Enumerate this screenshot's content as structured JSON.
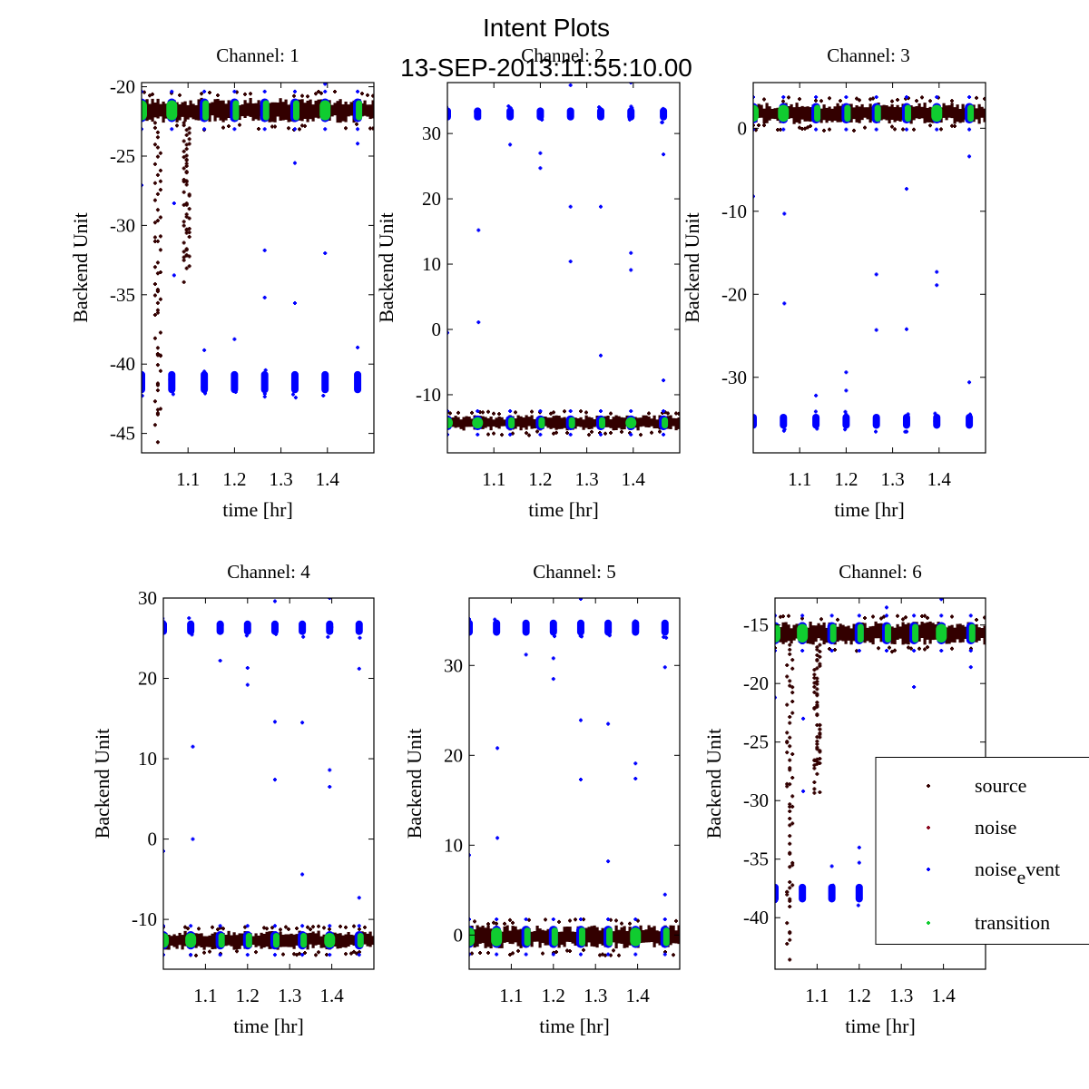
{
  "figure": {
    "title_line1": "Intent Plots",
    "title_line2": "13-SEP-2013:11:55:10.00"
  },
  "chart_data": {
    "type": "scatter",
    "title": "Intent Plots",
    "subtitle": "13-SEP-2013:11:55:10.00",
    "colors": {
      "source": "#330000",
      "noise": "#8b0a20",
      "noise_event": "#0000ff",
      "transition": "#10cc30"
    },
    "legend": {
      "placement": "lower-right of Channel: 6",
      "entries": [
        {
          "key": "source",
          "label": "source"
        },
        {
          "key": "noise",
          "label": "noise"
        },
        {
          "key": "noise_event",
          "label_main": "noise",
          "label_sub": "e",
          "label_rest": "vent"
        },
        {
          "key": "transition",
          "label": "transition"
        }
      ]
    },
    "cluster_times": [
      1.0,
      1.065,
      1.135,
      1.2,
      1.265,
      1.33,
      1.395,
      1.465
    ],
    "wide_transition_times": [
      1.0,
      1.065,
      1.395
    ],
    "panels": [
      {
        "title": "Channel: 1",
        "xlabel": "time [hr]",
        "ylabel": "Backend Unit",
        "xlim": [
          1.0,
          1.5
        ],
        "ylim": [
          -46.4,
          -19.7
        ],
        "xticks": [
          1.1,
          1.2,
          1.3,
          1.4
        ],
        "xtick_labels": [
          "1.1",
          "1.2",
          "1.3",
          "1.4"
        ],
        "yticks": [
          -20,
          -25,
          -30,
          -35,
          -40,
          -45
        ],
        "ytick_labels": [
          "-20",
          "-25",
          "-30",
          "-35",
          "-40",
          "-45"
        ],
        "source_band": {
          "center": -21.7,
          "half_width": 0.9
        },
        "noise_event_level": -41.3,
        "noise_event_spread": 0.8,
        "drops": [
          {
            "x": 1.035,
            "to": -46.4
          },
          {
            "x": 1.097,
            "to": -34.3
          }
        ],
        "outliers": [
          [
            1.0,
            -27.1
          ],
          [
            1.07,
            -28.4
          ],
          [
            1.07,
            -33.6
          ],
          [
            1.265,
            -31.8
          ],
          [
            1.265,
            -35.2
          ],
          [
            1.33,
            -25.5
          ],
          [
            1.33,
            -35.6
          ],
          [
            1.395,
            -32.0
          ],
          [
            1.465,
            -24.1
          ],
          [
            1.465,
            -38.8
          ],
          [
            1.2,
            -38.2
          ],
          [
            1.135,
            -39.0
          ],
          [
            1.395,
            -19.8
          ]
        ]
      },
      {
        "title": "Channel: 2",
        "xlabel": "time [hr]",
        "ylabel": "Backend Unit",
        "xlim": [
          1.0,
          1.5
        ],
        "ylim": [
          -18.9,
          37.8
        ],
        "xticks": [
          1.1,
          1.2,
          1.3,
          1.4
        ],
        "xtick_labels": [
          "1.1",
          "1.2",
          "1.3",
          "1.4"
        ],
        "yticks": [
          30,
          20,
          10,
          0,
          -10
        ],
        "ytick_labels": [
          "30",
          "20",
          "10",
          "0",
          "-10"
        ],
        "source_band": {
          "center": -14.3,
          "half_width": 1.2
        },
        "noise_event_level": 33.0,
        "noise_event_spread": 1.0,
        "drops": [],
        "outliers": [
          [
            1.0,
            -0.5
          ],
          [
            1.067,
            1.1
          ],
          [
            1.067,
            15.2
          ],
          [
            1.135,
            28.3
          ],
          [
            1.2,
            27.0
          ],
          [
            1.2,
            24.7
          ],
          [
            1.265,
            18.8
          ],
          [
            1.265,
            10.4
          ],
          [
            1.33,
            18.8
          ],
          [
            1.33,
            -4.0
          ],
          [
            1.395,
            11.7
          ],
          [
            1.395,
            9.1
          ],
          [
            1.465,
            26.8
          ],
          [
            1.465,
            -7.8
          ],
          [
            1.395,
            37.8
          ],
          [
            1.265,
            37.4
          ]
        ]
      },
      {
        "title": "Channel: 3",
        "xlabel": "time [hr]",
        "ylabel": "Backend Unit",
        "xlim": [
          1.0,
          1.5
        ],
        "ylim": [
          -39.1,
          5.5
        ],
        "xticks": [
          1.1,
          1.2,
          1.3,
          1.4
        ],
        "xtick_labels": [
          "1.1",
          "1.2",
          "1.3",
          "1.4"
        ],
        "yticks": [
          0,
          -10,
          -20,
          -30
        ],
        "ytick_labels": [
          "0",
          "-10",
          "-20",
          "-30"
        ],
        "source_band": {
          "center": 1.8,
          "half_width": 1.3
        },
        "noise_event_level": -35.3,
        "noise_event_spread": 0.9,
        "drops": [],
        "outliers": [
          [
            1.0,
            -8.2
          ],
          [
            1.067,
            -10.3
          ],
          [
            1.067,
            -21.1
          ],
          [
            1.265,
            -17.6
          ],
          [
            1.265,
            -24.3
          ],
          [
            1.33,
            -7.3
          ],
          [
            1.33,
            -24.2
          ],
          [
            1.395,
            -17.3
          ],
          [
            1.395,
            -18.9
          ],
          [
            1.465,
            -3.4
          ],
          [
            1.465,
            -30.6
          ],
          [
            1.2,
            -29.4
          ],
          [
            1.2,
            -31.6
          ],
          [
            1.135,
            -32.2
          ]
        ]
      },
      {
        "title": "Channel: 4",
        "xlabel": "time [hr]",
        "ylabel": "Backend Unit",
        "xlim": [
          1.0,
          1.5
        ],
        "ylim": [
          -16.2,
          30.0
        ],
        "xticks": [
          1.1,
          1.2,
          1.3,
          1.4
        ],
        "xtick_labels": [
          "1.1",
          "1.2",
          "1.3",
          "1.4"
        ],
        "yticks": [
          30,
          20,
          10,
          0,
          -10
        ],
        "ytick_labels": [
          "30",
          "20",
          "10",
          "0",
          "-10"
        ],
        "source_band": {
          "center": -12.6,
          "half_width": 1.2
        },
        "noise_event_level": 26.3,
        "noise_event_spread": 0.9,
        "drops": [],
        "outliers": [
          [
            1.0,
            -1.5
          ],
          [
            1.07,
            0.0
          ],
          [
            1.07,
            11.5
          ],
          [
            1.135,
            22.2
          ],
          [
            1.2,
            21.3
          ],
          [
            1.2,
            19.2
          ],
          [
            1.265,
            14.6
          ],
          [
            1.265,
            7.4
          ],
          [
            1.33,
            14.5
          ],
          [
            1.33,
            -4.4
          ],
          [
            1.395,
            8.6
          ],
          [
            1.395,
            6.5
          ],
          [
            1.465,
            21.2
          ],
          [
            1.465,
            -7.3
          ],
          [
            1.395,
            30.0
          ],
          [
            1.265,
            29.6
          ]
        ]
      },
      {
        "title": "Channel: 5",
        "xlabel": "time [hr]",
        "ylabel": "Backend Unit",
        "xlim": [
          1.0,
          1.5
        ],
        "ylim": [
          -3.8,
          37.5
        ],
        "xticks": [
          1.1,
          1.2,
          1.3,
          1.4
        ],
        "xtick_labels": [
          "1.1",
          "1.2",
          "1.3",
          "1.4"
        ],
        "yticks": [
          30,
          20,
          10,
          0
        ],
        "ytick_labels": [
          "30",
          "20",
          "10",
          "0"
        ],
        "source_band": {
          "center": -0.2,
          "half_width": 1.3
        },
        "noise_event_level": 34.2,
        "noise_event_spread": 0.9,
        "drops": [],
        "outliers": [
          [
            1.0,
            8.9
          ],
          [
            1.067,
            10.8
          ],
          [
            1.067,
            20.8
          ],
          [
            1.135,
            31.2
          ],
          [
            1.2,
            30.8
          ],
          [
            1.2,
            28.5
          ],
          [
            1.265,
            23.9
          ],
          [
            1.265,
            17.3
          ],
          [
            1.33,
            23.5
          ],
          [
            1.33,
            8.2
          ],
          [
            1.395,
            19.1
          ],
          [
            1.395,
            17.4
          ],
          [
            1.465,
            29.8
          ],
          [
            1.465,
            4.5
          ],
          [
            1.265,
            37.4
          ]
        ]
      },
      {
        "title": "Channel: 6",
        "xlabel": "time [hr]",
        "ylabel": "Backend Unit",
        "xlim": [
          1.0,
          1.5
        ],
        "ylim": [
          -44.4,
          -12.7
        ],
        "xticks": [
          1.1,
          1.2,
          1.3,
          1.4
        ],
        "xtick_labels": [
          "1.1",
          "1.2",
          "1.3",
          "1.4"
        ],
        "yticks": [
          -15,
          -20,
          -25,
          -30,
          -35,
          -40
        ],
        "ytick_labels": [
          "-15",
          "-20",
          "-25",
          "-30",
          "-35",
          "-40"
        ],
        "source_band": {
          "center": -15.7,
          "half_width": 1.0
        },
        "noise_event_level": -37.9,
        "noise_event_spread": 0.8,
        "drops": [
          {
            "x": 1.035,
            "to": -44.4
          },
          {
            "x": 1.1,
            "to": -29.9
          }
        ],
        "outliers": [
          [
            1.0,
            -21.2
          ],
          [
            1.067,
            -23.0
          ],
          [
            1.067,
            -29.2
          ],
          [
            1.2,
            -34.0
          ],
          [
            1.2,
            -35.3
          ],
          [
            1.135,
            -35.6
          ],
          [
            1.33,
            -20.3
          ],
          [
            1.465,
            -18.6
          ],
          [
            1.395,
            -12.8
          ],
          [
            1.265,
            -13.5
          ]
        ]
      }
    ]
  }
}
